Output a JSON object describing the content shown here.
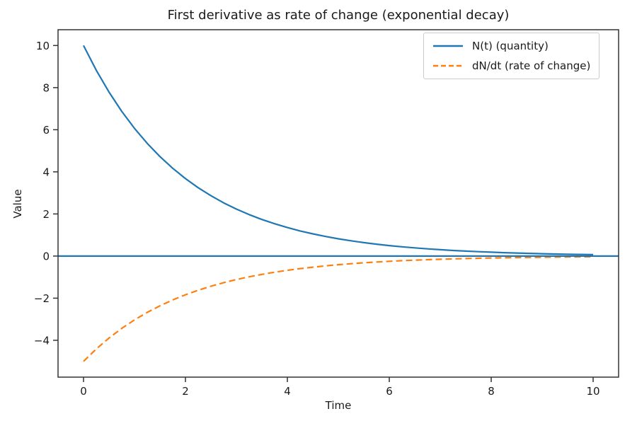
{
  "chart_data": {
    "type": "line",
    "title": "First derivative as rate of change (exponential decay)",
    "xlabel": "Time",
    "ylabel": "Value",
    "xlim": [
      -0.5,
      10.5
    ],
    "ylim": [
      -5.75,
      10.75
    ],
    "grid": false,
    "legend_position": "upper right",
    "frame_color": "#333333",
    "background_color": "#ffffff",
    "x_ticks": [
      0,
      2,
      4,
      6,
      8,
      10
    ],
    "x_tick_labels": [
      "0",
      "2",
      "4",
      "6",
      "8",
      "10"
    ],
    "y_ticks": [
      10,
      8,
      6,
      4,
      2,
      0,
      -2,
      -4
    ],
    "y_tick_labels": [
      "10",
      "8",
      "6",
      "4",
      "2",
      "0",
      "−2",
      "−4"
    ],
    "zero_line": {
      "y": 0,
      "color": "#1f77b4",
      "width": 2.2
    },
    "x": [
      0,
      0.25,
      0.5,
      0.75,
      1,
      1.25,
      1.5,
      1.75,
      2,
      2.25,
      2.5,
      2.75,
      3,
      3.25,
      3.5,
      3.75,
      4,
      4.25,
      4.5,
      4.75,
      5,
      5.25,
      5.5,
      5.75,
      6,
      6.25,
      6.5,
      6.75,
      7,
      7.25,
      7.5,
      7.75,
      8,
      8.25,
      8.5,
      8.75,
      9,
      9.25,
      9.5,
      9.75,
      10
    ],
    "series": [
      {
        "name": "N(t) (quantity)",
        "color": "#1f77b4",
        "style": "solid",
        "values": [
          10,
          8.825,
          7.788,
          6.873,
          6.065,
          5.353,
          4.724,
          4.169,
          3.679,
          3.247,
          2.865,
          2.528,
          2.231,
          1.969,
          1.738,
          1.534,
          1.353,
          1.194,
          1.054,
          0.93,
          0.821,
          0.724,
          0.639,
          0.564,
          0.498,
          0.439,
          0.388,
          0.342,
          0.302,
          0.266,
          0.235,
          0.208,
          0.183,
          0.162,
          0.143,
          0.126,
          0.111,
          0.098,
          0.087,
          0.076,
          0.067
        ]
      },
      {
        "name": "dN/dt (rate of change)",
        "color": "#ff7f0e",
        "style": "dashed",
        "values": [
          -5,
          -4.412,
          -3.894,
          -3.436,
          -3.033,
          -2.676,
          -2.362,
          -2.084,
          -1.839,
          -1.623,
          -1.433,
          -1.264,
          -1.116,
          -0.984,
          -0.869,
          -0.767,
          -0.677,
          -0.597,
          -0.527,
          -0.465,
          -0.41,
          -0.362,
          -0.32,
          -0.282,
          -0.249,
          -0.22,
          -0.194,
          -0.171,
          -0.151,
          -0.133,
          -0.117,
          -0.104,
          -0.092,
          -0.081,
          -0.071,
          -0.063,
          -0.056,
          -0.049,
          -0.043,
          -0.038,
          -0.034
        ]
      }
    ]
  }
}
